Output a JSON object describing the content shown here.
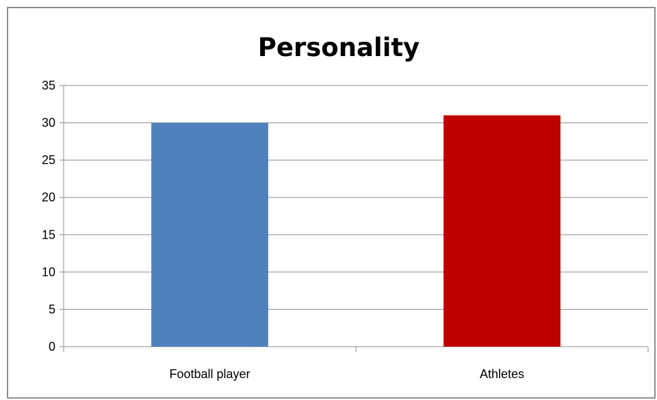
{
  "chart_data": {
    "type": "bar",
    "title": "Personality",
    "categories": [
      "Football player",
      "Athletes"
    ],
    "values": [
      30,
      31
    ],
    "colors": [
      "#4f81bd",
      "#c00000"
    ],
    "ylim": [
      0,
      35
    ],
    "yticks": [
      0,
      5,
      10,
      15,
      20,
      25,
      30,
      35
    ],
    "ytick_labels": [
      "0",
      "5",
      "10",
      "15",
      "20",
      "25",
      "30",
      "35"
    ],
    "grid": true,
    "legend": "none"
  }
}
